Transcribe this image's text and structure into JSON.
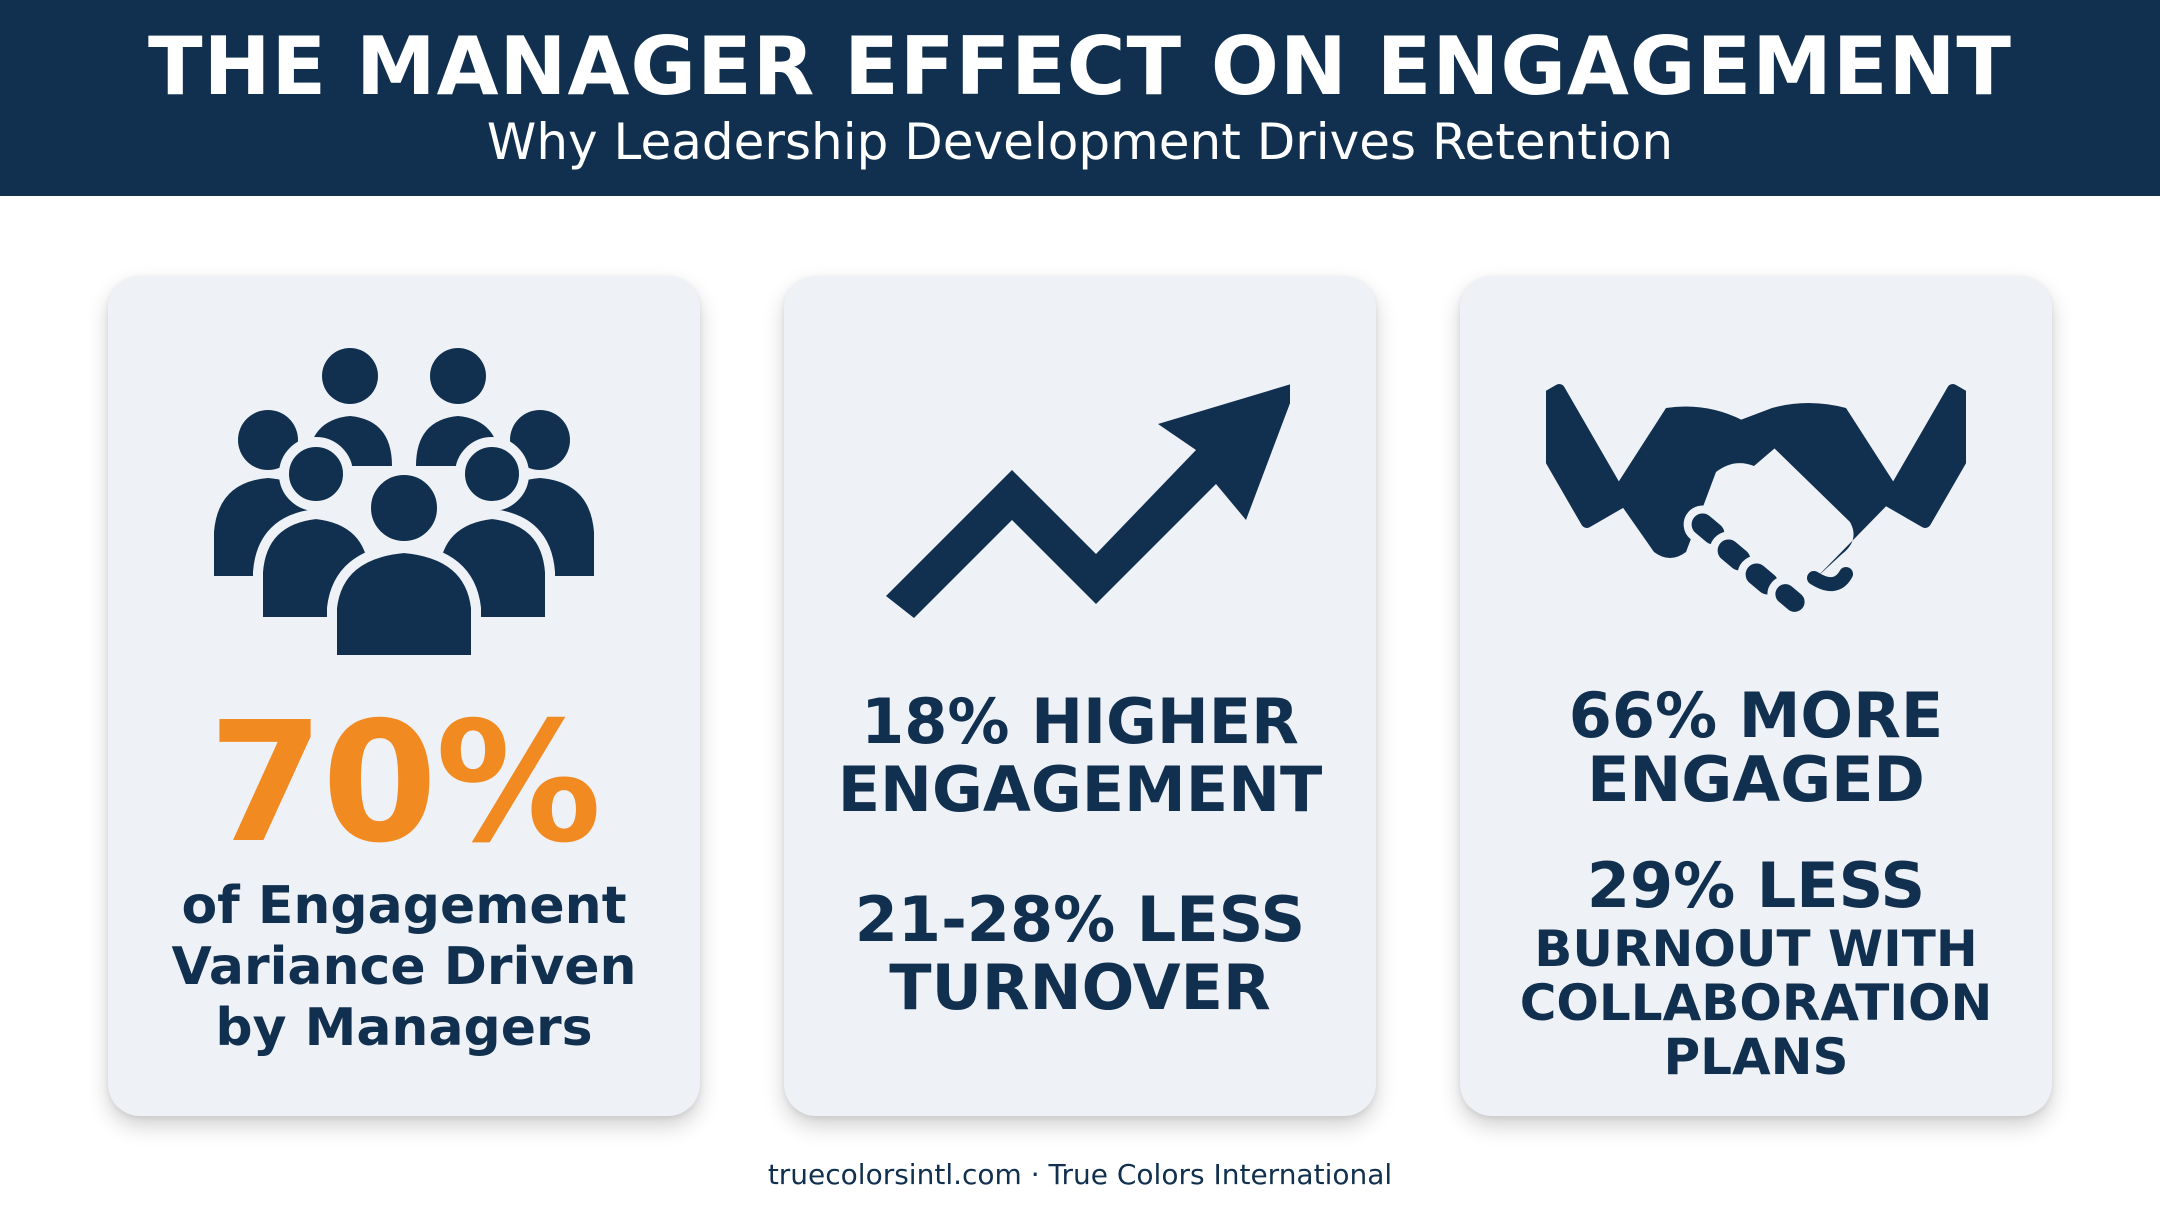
{
  "header": {
    "title": "THE MANAGER EFFECT ON ENGAGEMENT",
    "subtitle": "Why Leadership Development Drives Retention"
  },
  "cards": [
    {
      "icon": "group-people-icon",
      "big_stat": "70%",
      "description_lines": [
        "of Engagement",
        "Variance Driven",
        "by Managers"
      ]
    },
    {
      "icon": "trend-up-arrow-icon",
      "stat_1_lines": [
        "18% HIGHER",
        "ENGAGEMENT"
      ],
      "stat_2_lines": [
        "21-28% LESS",
        "TURNOVER"
      ]
    },
    {
      "icon": "handshake-icon",
      "stat_1_lines": [
        "66% MORE",
        "ENGAGED"
      ],
      "stat_2_headline": "29% LESS",
      "stat_2_lines": [
        "BURNOUT WITH",
        "COLLABORATION",
        "PLANS"
      ]
    }
  ],
  "footer": {
    "text": "truecolorsintl.com · True Colors International"
  },
  "colors": {
    "navy": "#11304f",
    "orange": "#f28a22",
    "card_bg": "#eef1f5",
    "header_bg": "#11304f"
  }
}
